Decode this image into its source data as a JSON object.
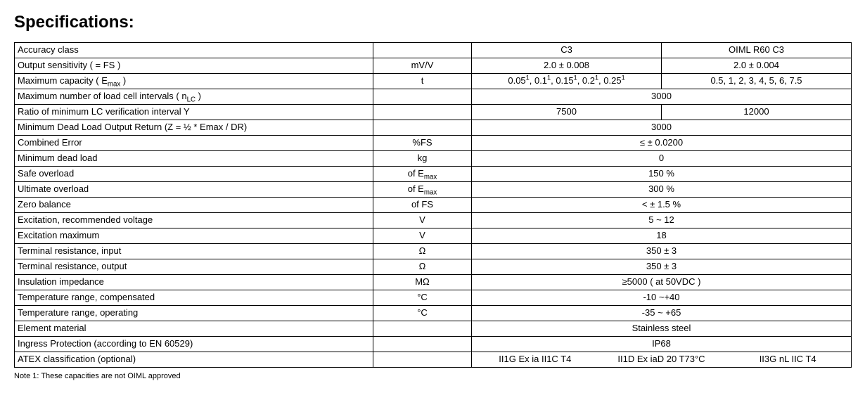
{
  "title": "Specifications:",
  "note": "Note 1: These capacities are not OIML approved",
  "colWidths": {
    "label": 510,
    "unit": 140,
    "val": 270
  },
  "rows": [
    {
      "label": "Accuracy class",
      "unit": "",
      "colA": "C3",
      "colB": "OIML R60 C3",
      "kind": "two"
    },
    {
      "label": "Output sensitivity ( = FS )",
      "unit": "mV/V",
      "colA": "2.0 ± 0.008",
      "colB": "2.0 ± 0.004",
      "kind": "two"
    },
    {
      "label": "Maximum capacity ( E<sub>max</sub> )",
      "unit": "t",
      "colA": "0.05<sup>1</sup>, 0.1<sup>1</sup>, 0.15<sup>1</sup>, 0.2<sup>1</sup>, 0.25<sup>1</sup>",
      "colB": "0.5, 1, 2, 3, 4, 5, 6, 7.5",
      "kind": "two",
      "htmlA": true
    },
    {
      "label": "Maximum number of load cell intervals ( n<sub>LC</sub> )",
      "unit": "",
      "wide": "3000",
      "kind": "wide"
    },
    {
      "label": "Ratio of minimum LC verification interval Y",
      "unit": "",
      "colA": "7500",
      "colB": "12000",
      "kind": "two"
    },
    {
      "label": "Minimum Dead Load Output Return (Z = ½ * Emax / DR)",
      "unit": "",
      "wide": "3000",
      "kind": "wide"
    },
    {
      "label": "Combined Error",
      "unit": "%FS",
      "wide": "≤ ± 0.0200",
      "kind": "wide"
    },
    {
      "label": "Minimum dead load",
      "unit": "kg",
      "wide": "0",
      "kind": "wide"
    },
    {
      "label": "Safe overload",
      "unit": "of E<sub>max</sub>",
      "wide": "150 %",
      "kind": "wide",
      "unitHtml": true
    },
    {
      "label": "Ultimate overload",
      "unit": "of E<sub>max</sub>",
      "wide": "300 %",
      "kind": "wide",
      "unitHtml": true
    },
    {
      "label": "Zero balance",
      "unit": "of FS",
      "wide": "< ± 1.5 %",
      "kind": "wide"
    },
    {
      "label": "Excitation, recommended voltage",
      "unit": "V",
      "wide": "5 ~ 12",
      "kind": "wide"
    },
    {
      "label": "Excitation maximum",
      "unit": "V",
      "wide": "18",
      "kind": "wide"
    },
    {
      "label": "Terminal resistance, input",
      "unit": "Ω",
      "wide": "350 ± 3",
      "kind": "wide"
    },
    {
      "label": "Terminal resistance, output",
      "unit": "Ω",
      "wide": "350 ± 3",
      "kind": "wide"
    },
    {
      "label": "Insulation impedance",
      "unit": "MΩ",
      "wide": "≥5000 ( at 50VDC )",
      "kind": "wide"
    },
    {
      "label": "Temperature range, compensated",
      "unit": "°C",
      "wide": "-10 ~+40",
      "kind": "wide"
    },
    {
      "label": "Temperature range, operating",
      "unit": "°C",
      "wide": "-35 ~ +65",
      "kind": "wide"
    },
    {
      "label": "Element material",
      "unit": "",
      "wide": "Stainless steel",
      "kind": "wide"
    },
    {
      "label": "Ingress Protection (according to EN 60529)",
      "unit": "",
      "wide": "IP68",
      "kind": "wide"
    },
    {
      "label": "ATEX classification (optional)",
      "unit": "",
      "kind": "three",
      "c1": "II1G Ex ia II1C T4",
      "c2": "II1D Ex iaD 20 T73°C",
      "c3": "II3G nL IIC T4"
    }
  ]
}
